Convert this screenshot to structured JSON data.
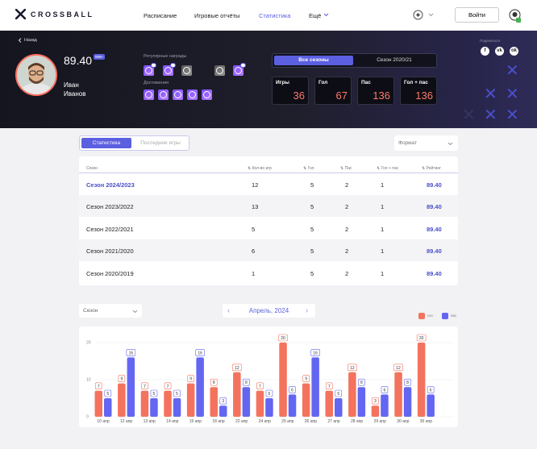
{
  "nav": {
    "logo_text": "CROSSBALL",
    "links": [
      "Расписание",
      "Игровые отчёты",
      "Статистика",
      "Ещё"
    ],
    "login": "Войти"
  },
  "player": {
    "back": "Назад",
    "rating": "89.40",
    "rating_badge": "999+",
    "first_name": "Иван",
    "last_name": "Иванов"
  },
  "awards": {
    "regular_label": "Регулярные награды",
    "achievements_label": "Достижения"
  },
  "season_tabs": [
    "Все сезоны",
    "Сезон 2020/21"
  ],
  "stats": [
    {
      "label": "Игры",
      "value": "36"
    },
    {
      "label": "Гол",
      "value": "67"
    },
    {
      "label": "Пас",
      "value": "136"
    },
    {
      "label": "Гол + пас",
      "value": "136"
    }
  ],
  "share_label": "Поделиться",
  "view_tabs": [
    "Статистика",
    "Последние игры"
  ],
  "format_placeholder": "Формат",
  "table": {
    "headers": [
      "Сезон",
      "Кол-во игр",
      "Гол",
      "Пас",
      "Гол + пас",
      "Рейтинг"
    ],
    "rows": [
      [
        "Сезон 2024/2023",
        "12",
        "5",
        "2",
        "1",
        "89.40"
      ],
      [
        "Сезон 2023/2022",
        "13",
        "5",
        "2",
        "1",
        "89.40"
      ],
      [
        "Сезон 2022/2021",
        "5",
        "5",
        "2",
        "1",
        "89.40"
      ],
      [
        "Сезон 2021/2020",
        "6",
        "5",
        "2",
        "1",
        "89.40"
      ],
      [
        "Сезон 2020/2019",
        "1",
        "5",
        "2",
        "1",
        "89.40"
      ]
    ]
  },
  "chart_controls": {
    "season_select": "Сезон",
    "month": "Апрель, 2024"
  },
  "colors": {
    "goal": "#f4735e",
    "pass": "#6366f1"
  },
  "chart_data": {
    "type": "bar",
    "categories": [
      "10 апр",
      "12 апр",
      "13 апр",
      "14 апр",
      "15 апр",
      "18 апр",
      "22 апр",
      "24 апр",
      "25 апр",
      "26 апр",
      "27 апр",
      "28 апр",
      "29 апр",
      "30 апр",
      "30 апр"
    ],
    "series": [
      {
        "name": "гол",
        "values": [
          7,
          9,
          7,
          7,
          9,
          8,
          12,
          7,
          20,
          9,
          7,
          12,
          3,
          12,
          20
        ]
      },
      {
        "name": "пас",
        "values": [
          5,
          16,
          5,
          5,
          16,
          3,
          8,
          5,
          6,
          16,
          5,
          8,
          6,
          8,
          6
        ]
      }
    ],
    "yticks": [
      "0",
      "10",
      "20"
    ],
    "ylim": [
      0,
      22
    ],
    "legend": "top-right"
  }
}
